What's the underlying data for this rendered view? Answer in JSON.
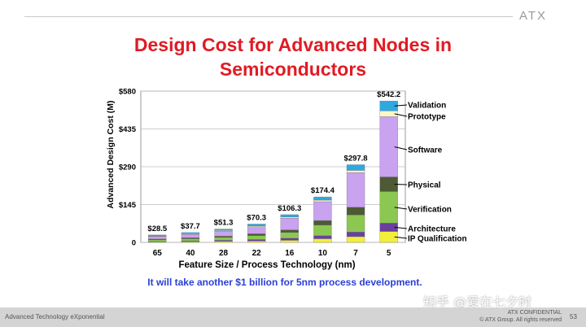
{
  "header": {
    "logo_text": "ATX"
  },
  "slide": {
    "title_line1": "Design Cost for Advanced Nodes in",
    "title_line2": "Semiconductors",
    "footnote": "It will take another  $1 billion for 5nm process development."
  },
  "footer": {
    "tagline": "Advanced Technology eXponential",
    "confidential": "ATX CONFIDENTIAL",
    "copyright": "© ATX Group. All rights reserved",
    "page": "53"
  },
  "watermark": "知乎 @爱在七夕时",
  "chart_data": {
    "type": "bar",
    "stacked": true,
    "title": "",
    "xlabel": "Feature Size / Process Technology (nm)",
    "ylabel": "Advanced Design Cost (M)",
    "ylim": [
      0,
      580
    ],
    "yticks": [
      0,
      145,
      290,
      435,
      580
    ],
    "ytick_labels": [
      "0",
      "$145",
      "$290",
      "$435",
      "$580"
    ],
    "categories": [
      "65",
      "40",
      "28",
      "22",
      "16",
      "10",
      "7",
      "5"
    ],
    "totals": [
      28.5,
      37.7,
      51.3,
      70.3,
      106.3,
      174.4,
      297.8,
      542.2
    ],
    "total_labels": [
      "$28.5",
      "$37.7",
      "$51.3",
      "$70.3",
      "$106.3",
      "$174.4",
      "$297.8",
      "$542.2"
    ],
    "grid": true,
    "legend_placement": "right",
    "series": [
      {
        "name": "IP Qualification",
        "color": "#f2ef3a",
        "values": [
          2,
          3,
          4,
          5,
          8,
          14,
          22,
          42
        ]
      },
      {
        "name": "Architecture",
        "color": "#6a3fa0",
        "values": [
          2,
          3,
          4,
          6,
          8,
          12,
          18,
          32
        ]
      },
      {
        "name": "Verification",
        "color": "#8cc751",
        "values": [
          6,
          8,
          11,
          15,
          22,
          40,
          65,
          121
        ]
      },
      {
        "name": "Physical",
        "color": "#4d5a33",
        "values": [
          3,
          4,
          5,
          7,
          10,
          18,
          30,
          56
        ]
      },
      {
        "name": "Software",
        "color": "#c9a2f0",
        "values": [
          10,
          13,
          19,
          27,
          45,
          72,
          133,
          231
        ]
      },
      {
        "name": "Prototype",
        "color": "#fdf7c8",
        "values": [
          1.5,
          2,
          2.5,
          3,
          4,
          6,
          8,
          22
        ]
      },
      {
        "name": "Validation",
        "color": "#2fa8e0",
        "values": [
          4,
          4.7,
          5.8,
          7.3,
          9.3,
          12.4,
          21.8,
          38.2
        ]
      }
    ]
  }
}
